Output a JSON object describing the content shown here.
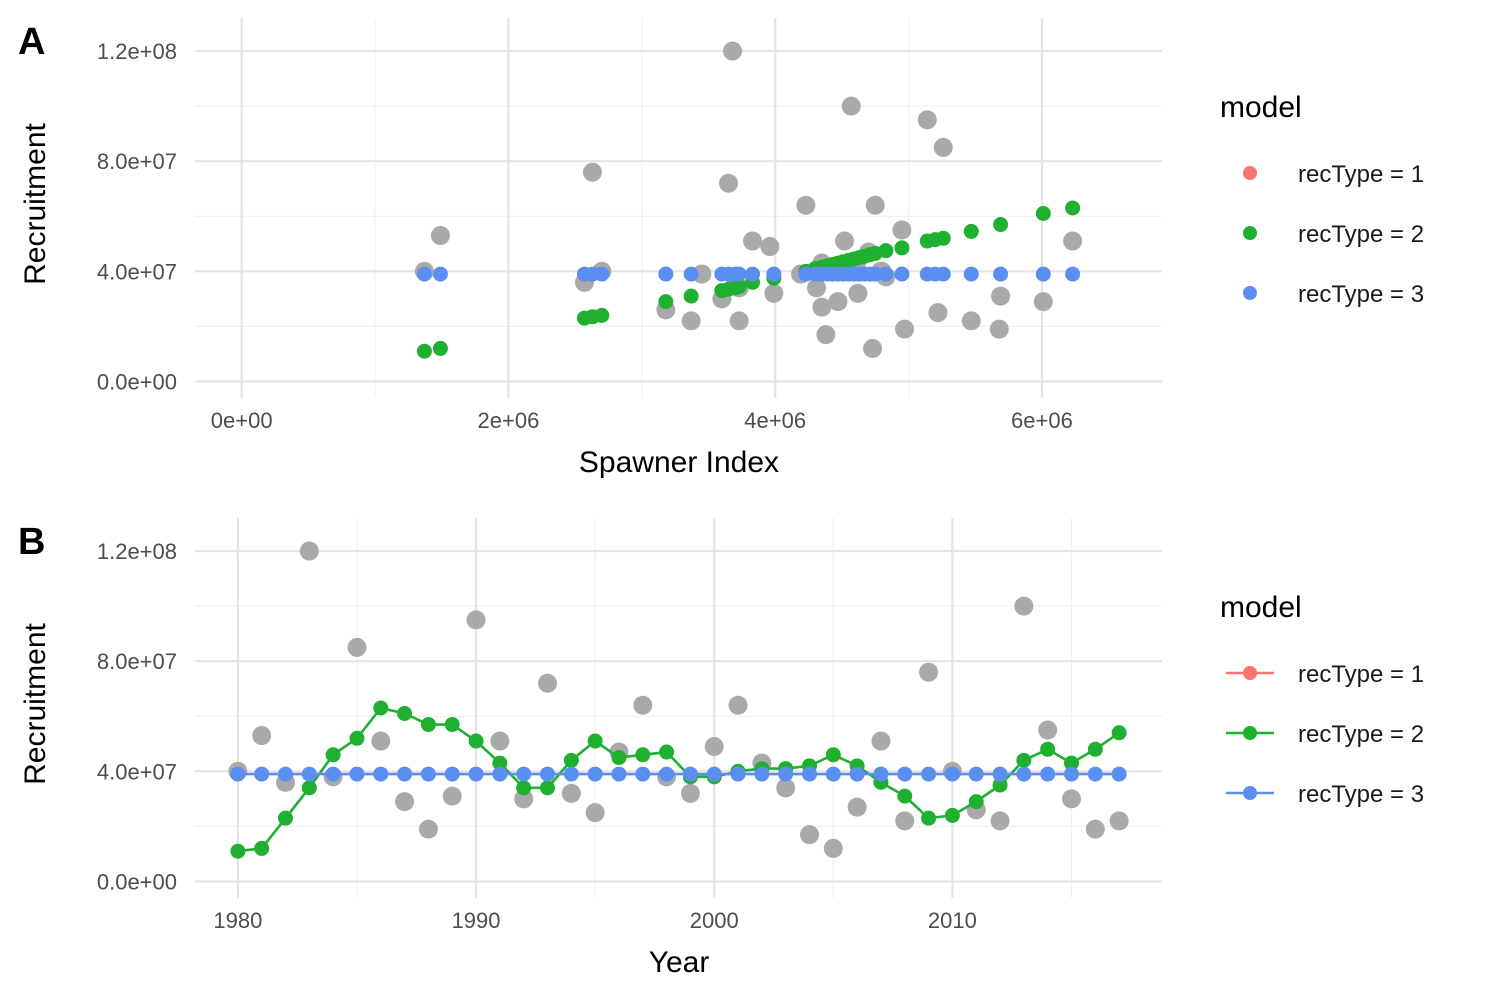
{
  "colors": {
    "observed": "#a9a9a9",
    "recType1": "#f8766d",
    "recType2": "#1fb030",
    "recType3": "#5a8ef0",
    "grid_major": "#e4e4e4",
    "grid_minor": "#f0f0f0"
  },
  "chart_data": [
    {
      "panel": "A",
      "type": "scatter",
      "xlabel": "Spawner Index",
      "ylabel": "Recruitment",
      "xlim": [
        -350000,
        6900000
      ],
      "ylim": [
        -6000000,
        132000000
      ],
      "x_ticks": [
        0,
        2000000,
        4000000,
        6000000
      ],
      "x_tick_labels": [
        "0e+00",
        "2e+06",
        "4e+06",
        "6e+06"
      ],
      "y_ticks": [
        0,
        40000000,
        80000000,
        120000000
      ],
      "y_tick_labels": [
        "0.0e+00",
        "4.0e+07",
        "8.0e+07",
        "1.2e+08"
      ],
      "grid": true,
      "legend": {
        "title": "model",
        "placement": "right",
        "entries": [
          "recType = 1",
          "recType = 2",
          "recType = 3"
        ]
      },
      "observed": {
        "x": [
          1370000,
          1490000,
          2570000,
          2630000,
          2700000,
          3180000,
          3370000,
          3600000,
          3650000,
          3700000,
          3730000,
          3830000,
          3960000,
          3990000,
          4230000,
          4310000,
          4350000,
          4380000,
          4470000,
          4520000,
          4570000,
          4620000,
          4700000,
          4730000,
          4750000,
          4830000,
          4950000,
          4970000,
          5140000,
          5220000,
          5260000,
          5470000,
          5680000,
          5690000,
          6010000,
          6230000
        ],
        "y": [
          40000000,
          53000000,
          36000000,
          76000000,
          40000000,
          26000000,
          22000000,
          30000000,
          72000000,
          38000000,
          22000000,
          51000000,
          49000000,
          32000000,
          64000000,
          34000000,
          27000000,
          17000000,
          29000000,
          51000000,
          100000000,
          32000000,
          47000000,
          12000000,
          64000000,
          38000000,
          55000000,
          19000000,
          95000000,
          25000000,
          85000000,
          22000000,
          19000000,
          31000000,
          29000000,
          51000000
        ],
        "extra_x": [
          3680000,
          4350000,
          4610000,
          3730000,
          4790000,
          3450000,
          4190000,
          4800000
        ],
        "extra_y": [
          120000000,
          43000000,
          43000000,
          34000000,
          40000000,
          39000000,
          39000000,
          40000000
        ]
      },
      "series": [
        {
          "name": "recType = 2",
          "x": [
            1370000,
            1490000,
            2570000,
            2630000,
            2700000,
            3180000,
            3370000,
            3600000,
            3650000,
            3700000,
            3730000,
            3830000,
            3990000,
            4230000,
            4300000,
            4350000,
            4390000,
            4430000,
            4470000,
            4510000,
            4550000,
            4590000,
            4630000,
            4670000,
            4710000,
            4750000,
            4830000,
            4950000,
            5140000,
            5200000,
            5260000,
            5470000,
            5690000,
            6010000,
            6230000
          ],
          "y": [
            11000000,
            12000000,
            23000000,
            23500000,
            24000000,
            29000000,
            31000000,
            33000000,
            33500000,
            34000000,
            34500000,
            36000000,
            37500000,
            40000000,
            41000000,
            41500000,
            42000000,
            42500000,
            43000000,
            43500000,
            44000000,
            44500000,
            45000000,
            45500000,
            46000000,
            46500000,
            47500000,
            48500000,
            51000000,
            51500000,
            52000000,
            54500000,
            57000000,
            61000000,
            63000000
          ]
        },
        {
          "name": "recType = 3",
          "x": [
            1370000,
            1490000,
            2570000,
            2630000,
            2700000,
            3180000,
            3370000,
            3600000,
            3650000,
            3700000,
            3730000,
            3830000,
            3990000,
            4230000,
            4300000,
            4350000,
            4390000,
            4430000,
            4470000,
            4510000,
            4550000,
            4590000,
            4630000,
            4670000,
            4710000,
            4750000,
            4830000,
            4950000,
            5140000,
            5200000,
            5260000,
            5470000,
            5690000,
            6010000,
            6230000
          ],
          "y": [
            39000000,
            39000000,
            39000000,
            39000000,
            39000000,
            39000000,
            39000000,
            39000000,
            39000000,
            39000000,
            39000000,
            39000000,
            39000000,
            39000000,
            39000000,
            39000000,
            39000000,
            39000000,
            39000000,
            39000000,
            39000000,
            39000000,
            39000000,
            39000000,
            39000000,
            39000000,
            39000000,
            39000000,
            39000000,
            39000000,
            39000000,
            39000000,
            39000000,
            39000000,
            39000000
          ]
        }
      ]
    },
    {
      "panel": "B",
      "type": "line",
      "xlabel": "Year",
      "ylabel": "Recruitment",
      "xlim": [
        1978.2,
        2018.8
      ],
      "ylim": [
        -6000000,
        132000000
      ],
      "x_ticks": [
        1980,
        1990,
        2000,
        2010
      ],
      "x_tick_labels": [
        "1980",
        "1990",
        "2000",
        "2010"
      ],
      "y_ticks": [
        0,
        40000000,
        80000000,
        120000000
      ],
      "y_tick_labels": [
        "0.0e+00",
        "4.0e+07",
        "8.0e+07",
        "1.2e+08"
      ],
      "grid": true,
      "legend": {
        "title": "model",
        "placement": "right",
        "entries": [
          "recType = 1",
          "recType = 2",
          "recType = 3"
        ]
      },
      "observed": {
        "x": [
          1980,
          1981,
          1982,
          1983,
          1984,
          1985,
          1986,
          1987,
          1988,
          1989,
          1990,
          1991,
          1992,
          1993,
          1994,
          1995,
          1996,
          1997,
          1998,
          1999,
          2000,
          2001,
          2002,
          2003,
          2004,
          2005,
          2006,
          2007,
          2008,
          2009,
          2010,
          2011,
          2012,
          2013,
          2014,
          2015,
          2016,
          2017
        ],
        "y": [
          40000000,
          53000000,
          36000000,
          120000000,
          38000000,
          85000000,
          51000000,
          29000000,
          19000000,
          31000000,
          95000000,
          51000000,
          30000000,
          72000000,
          32000000,
          25000000,
          47000000,
          64000000,
          38000000,
          32000000,
          49000000,
          64000000,
          43000000,
          34000000,
          17000000,
          12000000,
          27000000,
          51000000,
          22000000,
          76000000,
          40000000,
          26000000,
          22000000,
          100000000,
          55000000,
          30000000,
          19000000,
          22000000
        ]
      },
      "series": [
        {
          "name": "recType = 2",
          "x": [
            1980,
            1981,
            1982,
            1983,
            1984,
            1985,
            1986,
            1987,
            1988,
            1989,
            1990,
            1991,
            1992,
            1993,
            1994,
            1995,
            1996,
            1997,
            1998,
            1999,
            2000,
            2001,
            2002,
            2003,
            2004,
            2005,
            2006,
            2007,
            2008,
            2009,
            2010,
            2011,
            2012,
            2013,
            2014,
            2015,
            2016,
            2017
          ],
          "y": [
            11000000,
            12000000,
            23000000,
            34000000,
            46000000,
            52000000,
            63000000,
            61000000,
            57000000,
            57000000,
            51000000,
            43000000,
            34000000,
            34000000,
            44000000,
            51000000,
            45000000,
            46000000,
            47000000,
            38000000,
            38000000,
            40000000,
            41000000,
            41000000,
            42000000,
            46000000,
            42000000,
            36000000,
            31000000,
            23000000,
            24000000,
            29000000,
            35000000,
            44000000,
            48000000,
            43000000,
            48000000,
            54000000
          ]
        },
        {
          "name": "recType = 3",
          "x": [
            1980,
            1981,
            1982,
            1983,
            1984,
            1985,
            1986,
            1987,
            1988,
            1989,
            1990,
            1991,
            1992,
            1993,
            1994,
            1995,
            1996,
            1997,
            1998,
            1999,
            2000,
            2001,
            2002,
            2003,
            2004,
            2005,
            2006,
            2007,
            2008,
            2009,
            2010,
            2011,
            2012,
            2013,
            2014,
            2015,
            2016,
            2017
          ],
          "y": [
            39000000,
            39000000,
            39000000,
            39000000,
            39000000,
            39000000,
            39000000,
            39000000,
            39000000,
            39000000,
            39000000,
            39000000,
            39000000,
            39000000,
            39000000,
            39000000,
            39000000,
            39000000,
            39000000,
            39000000,
            39000000,
            39000000,
            39000000,
            39000000,
            39000000,
            39000000,
            39000000,
            39000000,
            39000000,
            39000000,
            39000000,
            39000000,
            39000000,
            39000000,
            39000000,
            39000000,
            39000000,
            39000000
          ]
        }
      ]
    }
  ]
}
